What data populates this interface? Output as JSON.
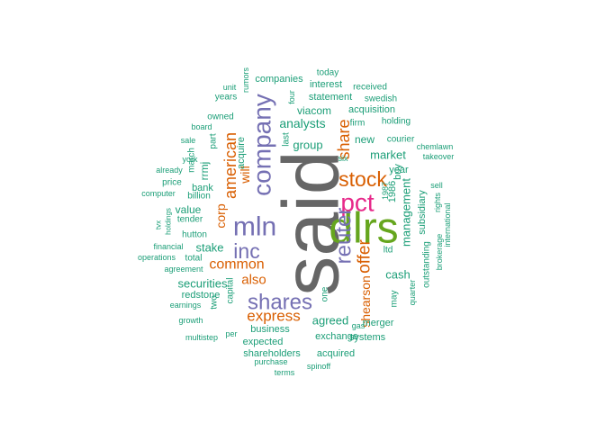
{
  "colors": {
    "gray": "#666666",
    "green": "#66a61e",
    "magenta": "#e7298a",
    "purple": "#7570b3",
    "orange": "#d95f02",
    "teal": "#1b9e77"
  },
  "words": [
    {
      "text": "said",
      "color": "gray"
    },
    {
      "text": "dlrs",
      "color": "green"
    },
    {
      "text": "pct",
      "color": "magenta"
    },
    {
      "text": "mln",
      "color": "purple"
    },
    {
      "text": "company",
      "color": "purple"
    },
    {
      "text": "inc",
      "color": "purple"
    },
    {
      "text": "shares",
      "color": "purple"
    },
    {
      "text": "reuter",
      "color": "purple"
    },
    {
      "text": "stock",
      "color": "orange"
    },
    {
      "text": "offer",
      "color": "orange"
    },
    {
      "text": "share",
      "color": "orange"
    },
    {
      "text": "american",
      "color": "orange"
    },
    {
      "text": "express",
      "color": "orange"
    },
    {
      "text": "common",
      "color": "orange"
    },
    {
      "text": "also",
      "color": "orange"
    },
    {
      "text": "corp",
      "color": "orange"
    },
    {
      "text": "will",
      "color": "orange"
    },
    {
      "text": "shearson",
      "color": "orange"
    },
    {
      "text": "analysts",
      "color": "teal"
    },
    {
      "text": "group",
      "color": "teal"
    },
    {
      "text": "market",
      "color": "teal"
    },
    {
      "text": "securities",
      "color": "teal"
    },
    {
      "text": "agreed",
      "color": "teal"
    },
    {
      "text": "cash",
      "color": "teal"
    },
    {
      "text": "management",
      "color": "teal"
    },
    {
      "text": "stake",
      "color": "teal"
    },
    {
      "text": "new",
      "color": "teal"
    },
    {
      "text": "viacom",
      "color": "teal"
    },
    {
      "text": "rrmj",
      "color": "teal"
    },
    {
      "text": "value",
      "color": "teal"
    },
    {
      "text": "bank",
      "color": "teal"
    },
    {
      "text": "business",
      "color": "teal"
    },
    {
      "text": "statement",
      "color": "teal"
    },
    {
      "text": "acquisition",
      "color": "teal"
    },
    {
      "text": "year",
      "color": "teal"
    },
    {
      "text": "buy",
      "color": "teal"
    },
    {
      "text": "1986",
      "color": "teal"
    },
    {
      "text": "subsidiary",
      "color": "teal"
    },
    {
      "text": "expected",
      "color": "teal"
    },
    {
      "text": "exchange",
      "color": "teal"
    },
    {
      "text": "shareholders",
      "color": "teal"
    },
    {
      "text": "acquired",
      "color": "teal"
    },
    {
      "text": "systems",
      "color": "teal"
    },
    {
      "text": "merger",
      "color": "teal"
    },
    {
      "text": "redstone",
      "color": "teal"
    },
    {
      "text": "companies",
      "color": "teal"
    },
    {
      "text": "interest",
      "color": "teal"
    },
    {
      "text": "today",
      "color": "teal"
    },
    {
      "text": "received",
      "color": "teal"
    },
    {
      "text": "swedish",
      "color": "teal"
    },
    {
      "text": "firm",
      "color": "teal"
    },
    {
      "text": "holding",
      "color": "teal"
    },
    {
      "text": "courier",
      "color": "teal"
    },
    {
      "text": "owned",
      "color": "teal"
    },
    {
      "text": "years",
      "color": "teal"
    },
    {
      "text": "unit",
      "color": "teal"
    },
    {
      "text": "board",
      "color": "teal"
    },
    {
      "text": "sale",
      "color": "teal"
    },
    {
      "text": "york",
      "color": "teal"
    },
    {
      "text": "already",
      "color": "teal"
    },
    {
      "text": "price",
      "color": "teal"
    },
    {
      "text": "computer",
      "color": "teal"
    },
    {
      "text": "billion",
      "color": "teal"
    },
    {
      "text": "tender",
      "color": "teal"
    },
    {
      "text": "hutton",
      "color": "teal"
    },
    {
      "text": "total",
      "color": "teal"
    },
    {
      "text": "financial",
      "color": "teal"
    },
    {
      "text": "operations",
      "color": "teal"
    },
    {
      "text": "agreement",
      "color": "teal"
    },
    {
      "text": "earnings",
      "color": "teal"
    },
    {
      "text": "growth",
      "color": "teal"
    },
    {
      "text": "multistep",
      "color": "teal"
    },
    {
      "text": "per",
      "color": "teal"
    },
    {
      "text": "purchase",
      "color": "teal"
    },
    {
      "text": "terms",
      "color": "teal"
    },
    {
      "text": "spinoff",
      "color": "teal"
    },
    {
      "text": "gas",
      "color": "teal"
    },
    {
      "text": "six",
      "color": "teal"
    },
    {
      "text": "takeover",
      "color": "teal"
    },
    {
      "text": "chemlawn",
      "color": "teal"
    },
    {
      "text": "sell",
      "color": "teal"
    },
    {
      "text": "rumors",
      "color": "teal"
    },
    {
      "text": "four",
      "color": "teal"
    },
    {
      "text": "last",
      "color": "teal"
    },
    {
      "text": "one",
      "color": "teal"
    },
    {
      "text": "two",
      "color": "teal"
    },
    {
      "text": "capital",
      "color": "teal"
    },
    {
      "text": "may",
      "color": "teal"
    },
    {
      "text": "ltd",
      "color": "teal"
    },
    {
      "text": "1987",
      "color": "teal"
    },
    {
      "text": "quarter",
      "color": "teal"
    },
    {
      "text": "outstanding",
      "color": "teal"
    },
    {
      "text": "brokerage",
      "color": "teal"
    },
    {
      "text": "rights",
      "color": "teal"
    },
    {
      "text": "international",
      "color": "teal"
    },
    {
      "text": "march",
      "color": "teal"
    },
    {
      "text": "part",
      "color": "teal"
    },
    {
      "text": "acquire",
      "color": "teal"
    },
    {
      "text": "holdings",
      "color": "teal"
    },
    {
      "text": "tvx",
      "color": "teal"
    }
  ]
}
